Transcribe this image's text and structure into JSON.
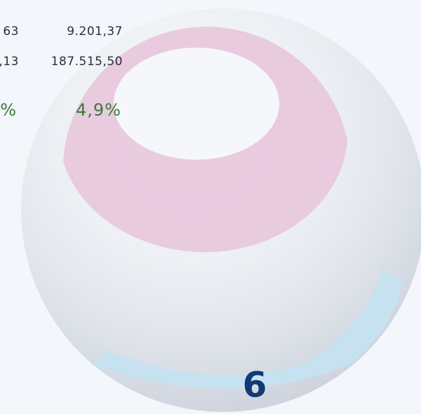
{
  "table": {
    "rows": [
      [
        "63",
        "9.201,37"
      ],
      [
        ",13",
        "187.515,50"
      ],
      [
        "%",
        "4,9%"
      ]
    ]
  },
  "badge": {
    "label": "6"
  }
}
